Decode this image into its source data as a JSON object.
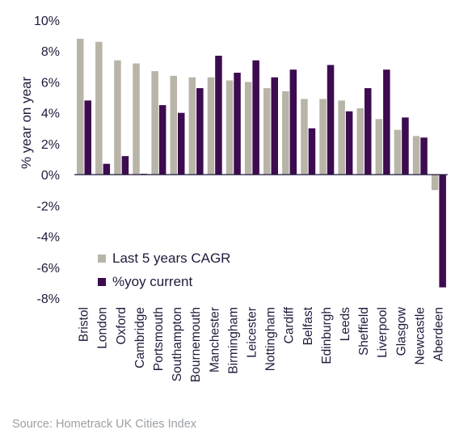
{
  "chart_data": {
    "type": "bar",
    "ylabel": "% year on year",
    "ylim": [
      -8,
      10
    ],
    "yticks": [
      -8,
      -6,
      -4,
      -2,
      0,
      2,
      4,
      6,
      8,
      10
    ],
    "ytick_labels": [
      "-8%",
      "-6%",
      "-4%",
      "-2%",
      "0%",
      "2%",
      "4%",
      "6%",
      "8%",
      "10%"
    ],
    "legend_position": "bottom-left",
    "categories": [
      "Bristol",
      "London",
      "Oxford",
      "Cambridge",
      "Portsmouth",
      "Southampton",
      "Bournemouth",
      "Manchester",
      "Birmingham",
      "Leicester",
      "Nottingham",
      "Cardiff",
      "Belfast",
      "Edinburgh",
      "Leeds",
      "Sheffield",
      "Liverpool",
      "Glasgow",
      "Newcastle",
      "Aberdeen"
    ],
    "series": [
      {
        "name": "Last 5 years CAGR",
        "color": "#b8b4a8",
        "values": [
          8.8,
          8.6,
          7.4,
          7.2,
          6.7,
          6.4,
          6.3,
          6.3,
          6.1,
          6.0,
          5.6,
          5.4,
          4.9,
          4.9,
          4.8,
          4.3,
          3.6,
          2.9,
          2.5,
          -1.0
        ]
      },
      {
        "name": "%yoy current",
        "color": "#3d0b4f",
        "values": [
          4.8,
          0.7,
          1.2,
          0.0,
          4.5,
          4.0,
          5.6,
          7.7,
          6.6,
          7.4,
          6.3,
          6.8,
          3.0,
          7.1,
          4.1,
          5.6,
          6.8,
          3.7,
          2.4,
          -7.3
        ]
      }
    ]
  },
  "source_text": "Source: Hometrack UK Cities Index"
}
